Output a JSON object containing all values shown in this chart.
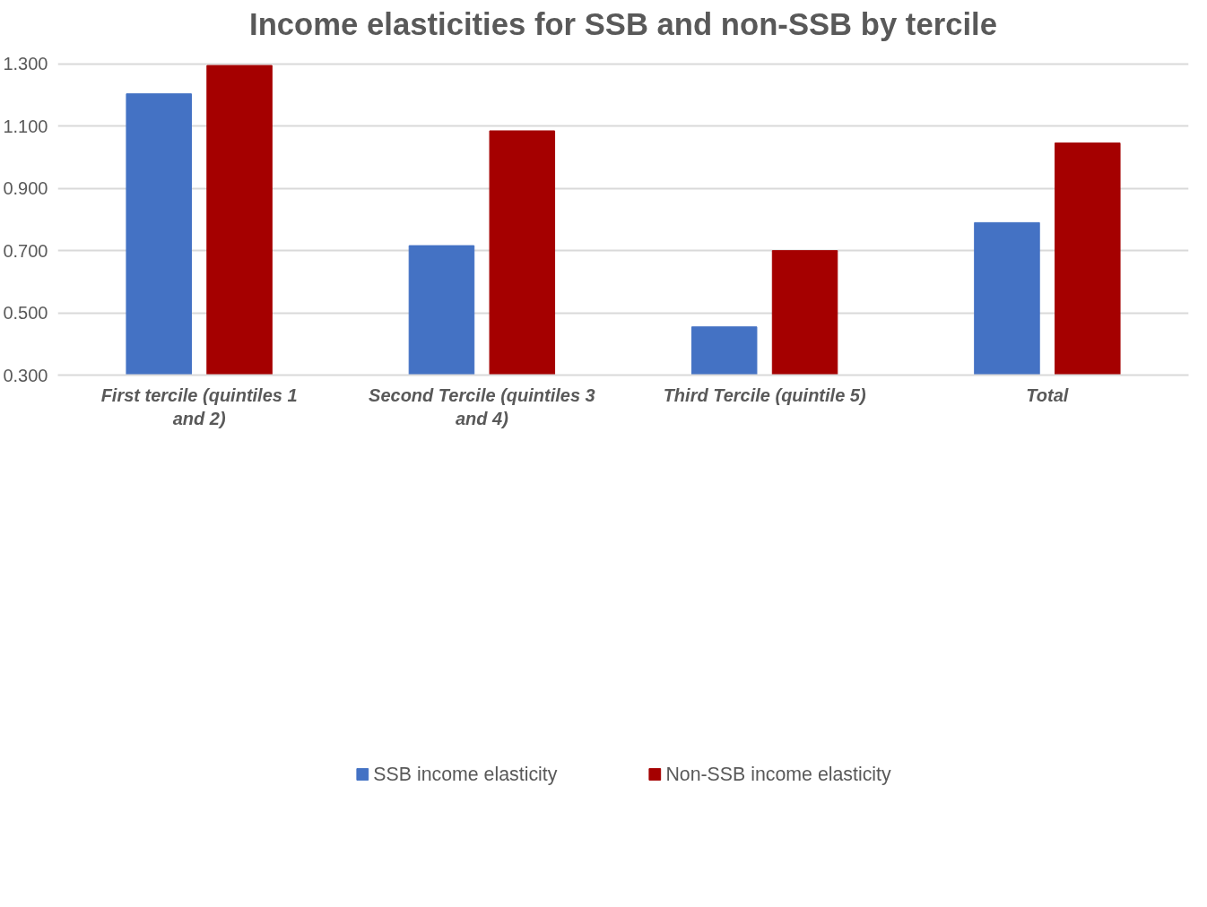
{
  "chart_data": {
    "type": "bar",
    "title": "Income elasticities for SSB and non-SSB by tercile",
    "categories": [
      "First tercile (quintiles 1 and 2)",
      "Second Tercile (quintiles 3 and 4)",
      "Third Tercile (quintile 5)",
      "Total"
    ],
    "series": [
      {
        "name": "SSB income elasticity",
        "color": "#4472c4",
        "values": [
          1.204,
          0.716,
          0.455,
          0.79
        ]
      },
      {
        "name": "Non-SSB income elasticity",
        "color": "#a50000",
        "values": [
          1.295,
          1.085,
          0.7,
          1.046
        ]
      }
    ],
    "ylim": [
      0.3,
      1.3
    ],
    "yticks": [
      {
        "value": 0.3,
        "label": "0.300"
      },
      {
        "value": 0.5,
        "label": "0.500"
      },
      {
        "value": 0.7,
        "label": "0.700"
      },
      {
        "value": 0.9,
        "label": "0.900"
      },
      {
        "value": 1.1,
        "label": "1.100"
      },
      {
        "value": 1.3,
        "label": "1.300"
      }
    ],
    "grid": "y",
    "legend": "bottom"
  }
}
